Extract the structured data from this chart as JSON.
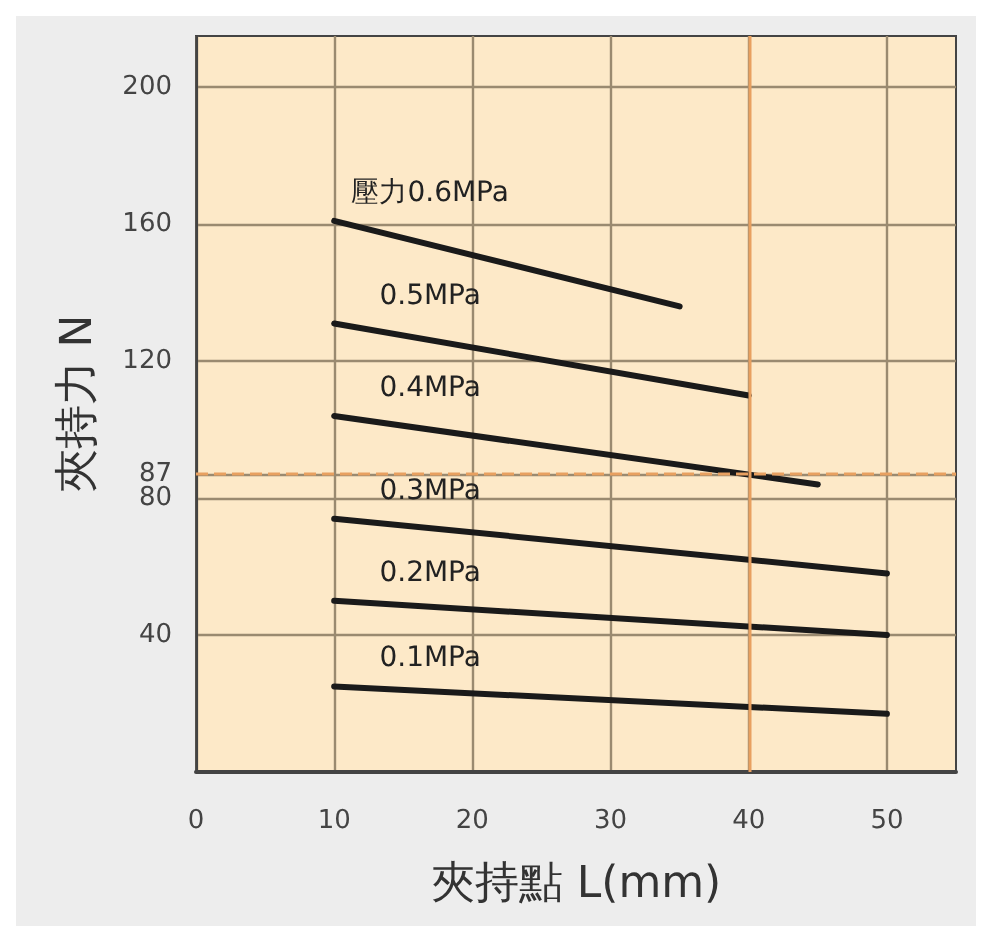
{
  "chart_data": {
    "type": "line",
    "xlabel": "夾持點 L(mm)",
    "ylabel": "夾持力 N",
    "xlim": [
      0,
      55
    ],
    "ylim": [
      0,
      215
    ],
    "xticks": [
      0,
      10,
      20,
      30,
      40,
      50
    ],
    "yticks": [
      40,
      80,
      87,
      120,
      160,
      200
    ],
    "grid": true,
    "legend": false,
    "marker": "none",
    "line_style": "solid",
    "series": [
      {
        "name": "壓力0.6MPa",
        "color": "#1a1a1a",
        "x": [
          10,
          35
        ],
        "values": [
          161,
          136
        ]
      },
      {
        "name": "0.5MPa",
        "color": "#1a1a1a",
        "x": [
          10,
          40
        ],
        "values": [
          131,
          110
        ]
      },
      {
        "name": "0.4MPa",
        "color": "#1a1a1a",
        "x": [
          10,
          45
        ],
        "values": [
          104,
          84
        ]
      },
      {
        "name": "0.3MPa",
        "color": "#1a1a1a",
        "x": [
          10,
          50
        ],
        "values": [
          74,
          58
        ]
      },
      {
        "name": "0.2MPa",
        "color": "#1a1a1a",
        "x": [
          10,
          50
        ],
        "values": [
          50,
          40
        ]
      },
      {
        "name": "0.1MPa",
        "color": "#1a1a1a",
        "x": [
          10,
          50
        ],
        "values": [
          25,
          17
        ]
      }
    ],
    "ref_lines": [
      {
        "axis": "y",
        "value": 87,
        "color": "#e8a060",
        "line_style": "dashed"
      },
      {
        "axis": "x",
        "value": 40,
        "color": "#e8a060",
        "line_style": "solid"
      }
    ]
  }
}
